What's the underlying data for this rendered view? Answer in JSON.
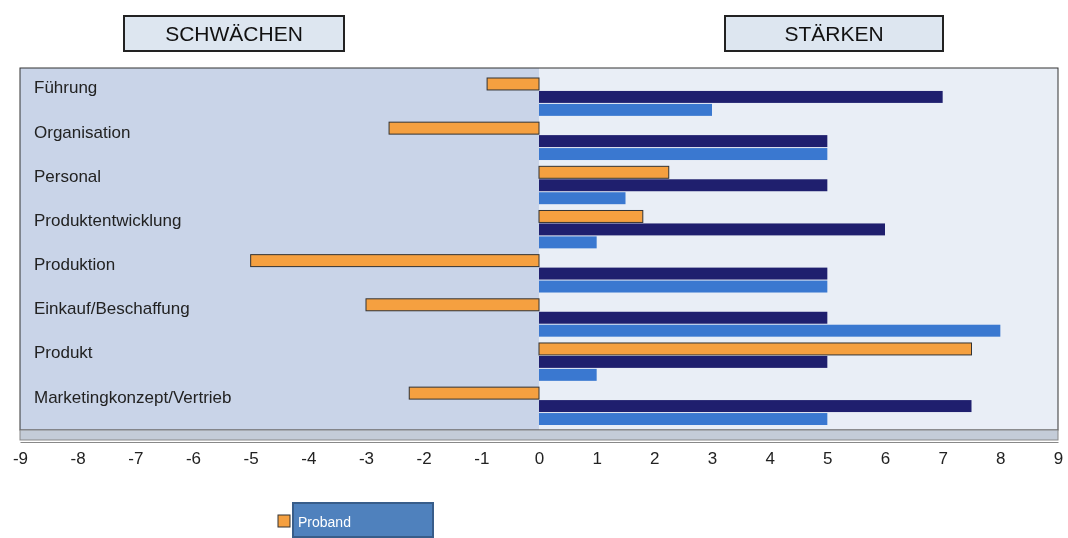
{
  "chart_data": {
    "type": "bar",
    "orientation": "horizontal",
    "categories": [
      "Führung",
      "Organisation",
      "Personal",
      "Produktentwicklung",
      "Produktion",
      "Einkauf/Beschaffung",
      "Produkt",
      "Marketingkonzept/Vertrieb"
    ],
    "series": [
      {
        "name": "Proband",
        "color": "#f5a040",
        "values": [
          -0.9,
          -2.6,
          2.25,
          1.8,
          -5,
          -3,
          7.5,
          -2.25
        ]
      },
      {
        "color": "#1f1f6e",
        "values": [
          7,
          5,
          5,
          6,
          5,
          5,
          5,
          7.5
        ]
      },
      {
        "color": "#3a78d0",
        "values": [
          3,
          5,
          1.5,
          1,
          5,
          8,
          1,
          5
        ]
      }
    ],
    "xlim": [
      -9,
      9
    ],
    "xticks": [
      -9,
      -8,
      -7,
      -6,
      -5,
      -4,
      -3,
      -2,
      -1,
      0,
      1,
      2,
      3,
      4,
      5,
      6,
      7,
      8,
      9
    ],
    "annotations": [
      "SCHWÄCHEN",
      "STÄRKEN"
    ],
    "bands": [
      {
        "axis": "x",
        "from": -9,
        "to": 0,
        "color": "#c9d4e8"
      },
      {
        "axis": "x",
        "from": 0,
        "to": 9,
        "color": "#e9eef6"
      }
    ],
    "legend": "bottom",
    "grid": false
  }
}
